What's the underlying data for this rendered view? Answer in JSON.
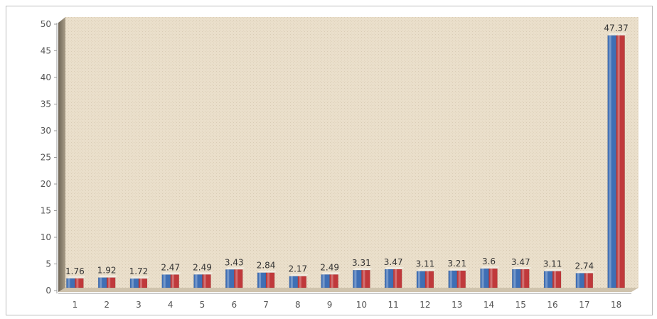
{
  "chart_data": {
    "type": "bar",
    "title": "",
    "xlabel": "",
    "ylabel": "",
    "ylim": [
      0,
      50
    ],
    "yticks": [
      0,
      5,
      10,
      15,
      20,
      25,
      30,
      35,
      40,
      45,
      50
    ],
    "categories": [
      "1",
      "2",
      "3",
      "4",
      "5",
      "6",
      "7",
      "8",
      "9",
      "10",
      "11",
      "12",
      "13",
      "14",
      "15",
      "16",
      "17",
      "18"
    ],
    "series": [
      {
        "color": "#3f6fb5",
        "values": [
          1.76,
          1.92,
          1.72,
          2.47,
          2.49,
          3.43,
          2.84,
          2.17,
          2.49,
          3.31,
          3.47,
          3.11,
          3.21,
          3.6,
          3.47,
          3.11,
          2.74,
          47.37
        ]
      },
      {
        "color": "#c0393b",
        "values": [
          1.76,
          1.92,
          1.72,
          2.47,
          2.49,
          3.43,
          2.84,
          2.17,
          2.49,
          3.31,
          3.47,
          3.11,
          3.21,
          3.6,
          3.47,
          3.11,
          2.74,
          47.37
        ]
      }
    ],
    "data_labels": [
      "1.76",
      "1.92",
      "1.72",
      "2.47",
      "2.49",
      "3.43",
      "2.84",
      "2.17",
      "2.49",
      "3.31",
      "3.47",
      "3.11",
      "3.21",
      "3.6",
      "3.47",
      "3.11",
      "2.74",
      "47.37"
    ],
    "grid": false,
    "legend": "none",
    "plot_background": "#e9dcc6",
    "wall_color": "#8f8573"
  }
}
